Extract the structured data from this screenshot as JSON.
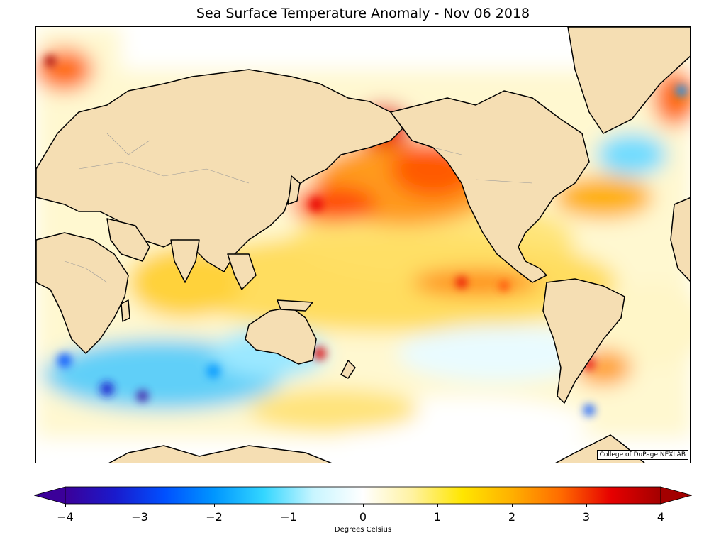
{
  "title": "Sea Surface Temperature Anomaly - Nov 06 2018",
  "credit": "College of DuPage NEXLAB",
  "colorbar": {
    "label": "Degrees Celsius",
    "min": -4,
    "max": 4,
    "ticks": [
      "−4",
      "−3",
      "−2",
      "−1",
      "0",
      "1",
      "2",
      "3",
      "4"
    ],
    "stops": [
      "#3b0099",
      "#1a1acc",
      "#0050ff",
      "#0096ff",
      "#33d6ff",
      "#c8f5ff",
      "#ffffff",
      "#fff2a0",
      "#ffe600",
      "#ffb000",
      "#ff6a00",
      "#e60000",
      "#a30000"
    ]
  },
  "colors": {
    "land": "#f5deb3",
    "coast": "#000000",
    "border": "#999999"
  }
}
